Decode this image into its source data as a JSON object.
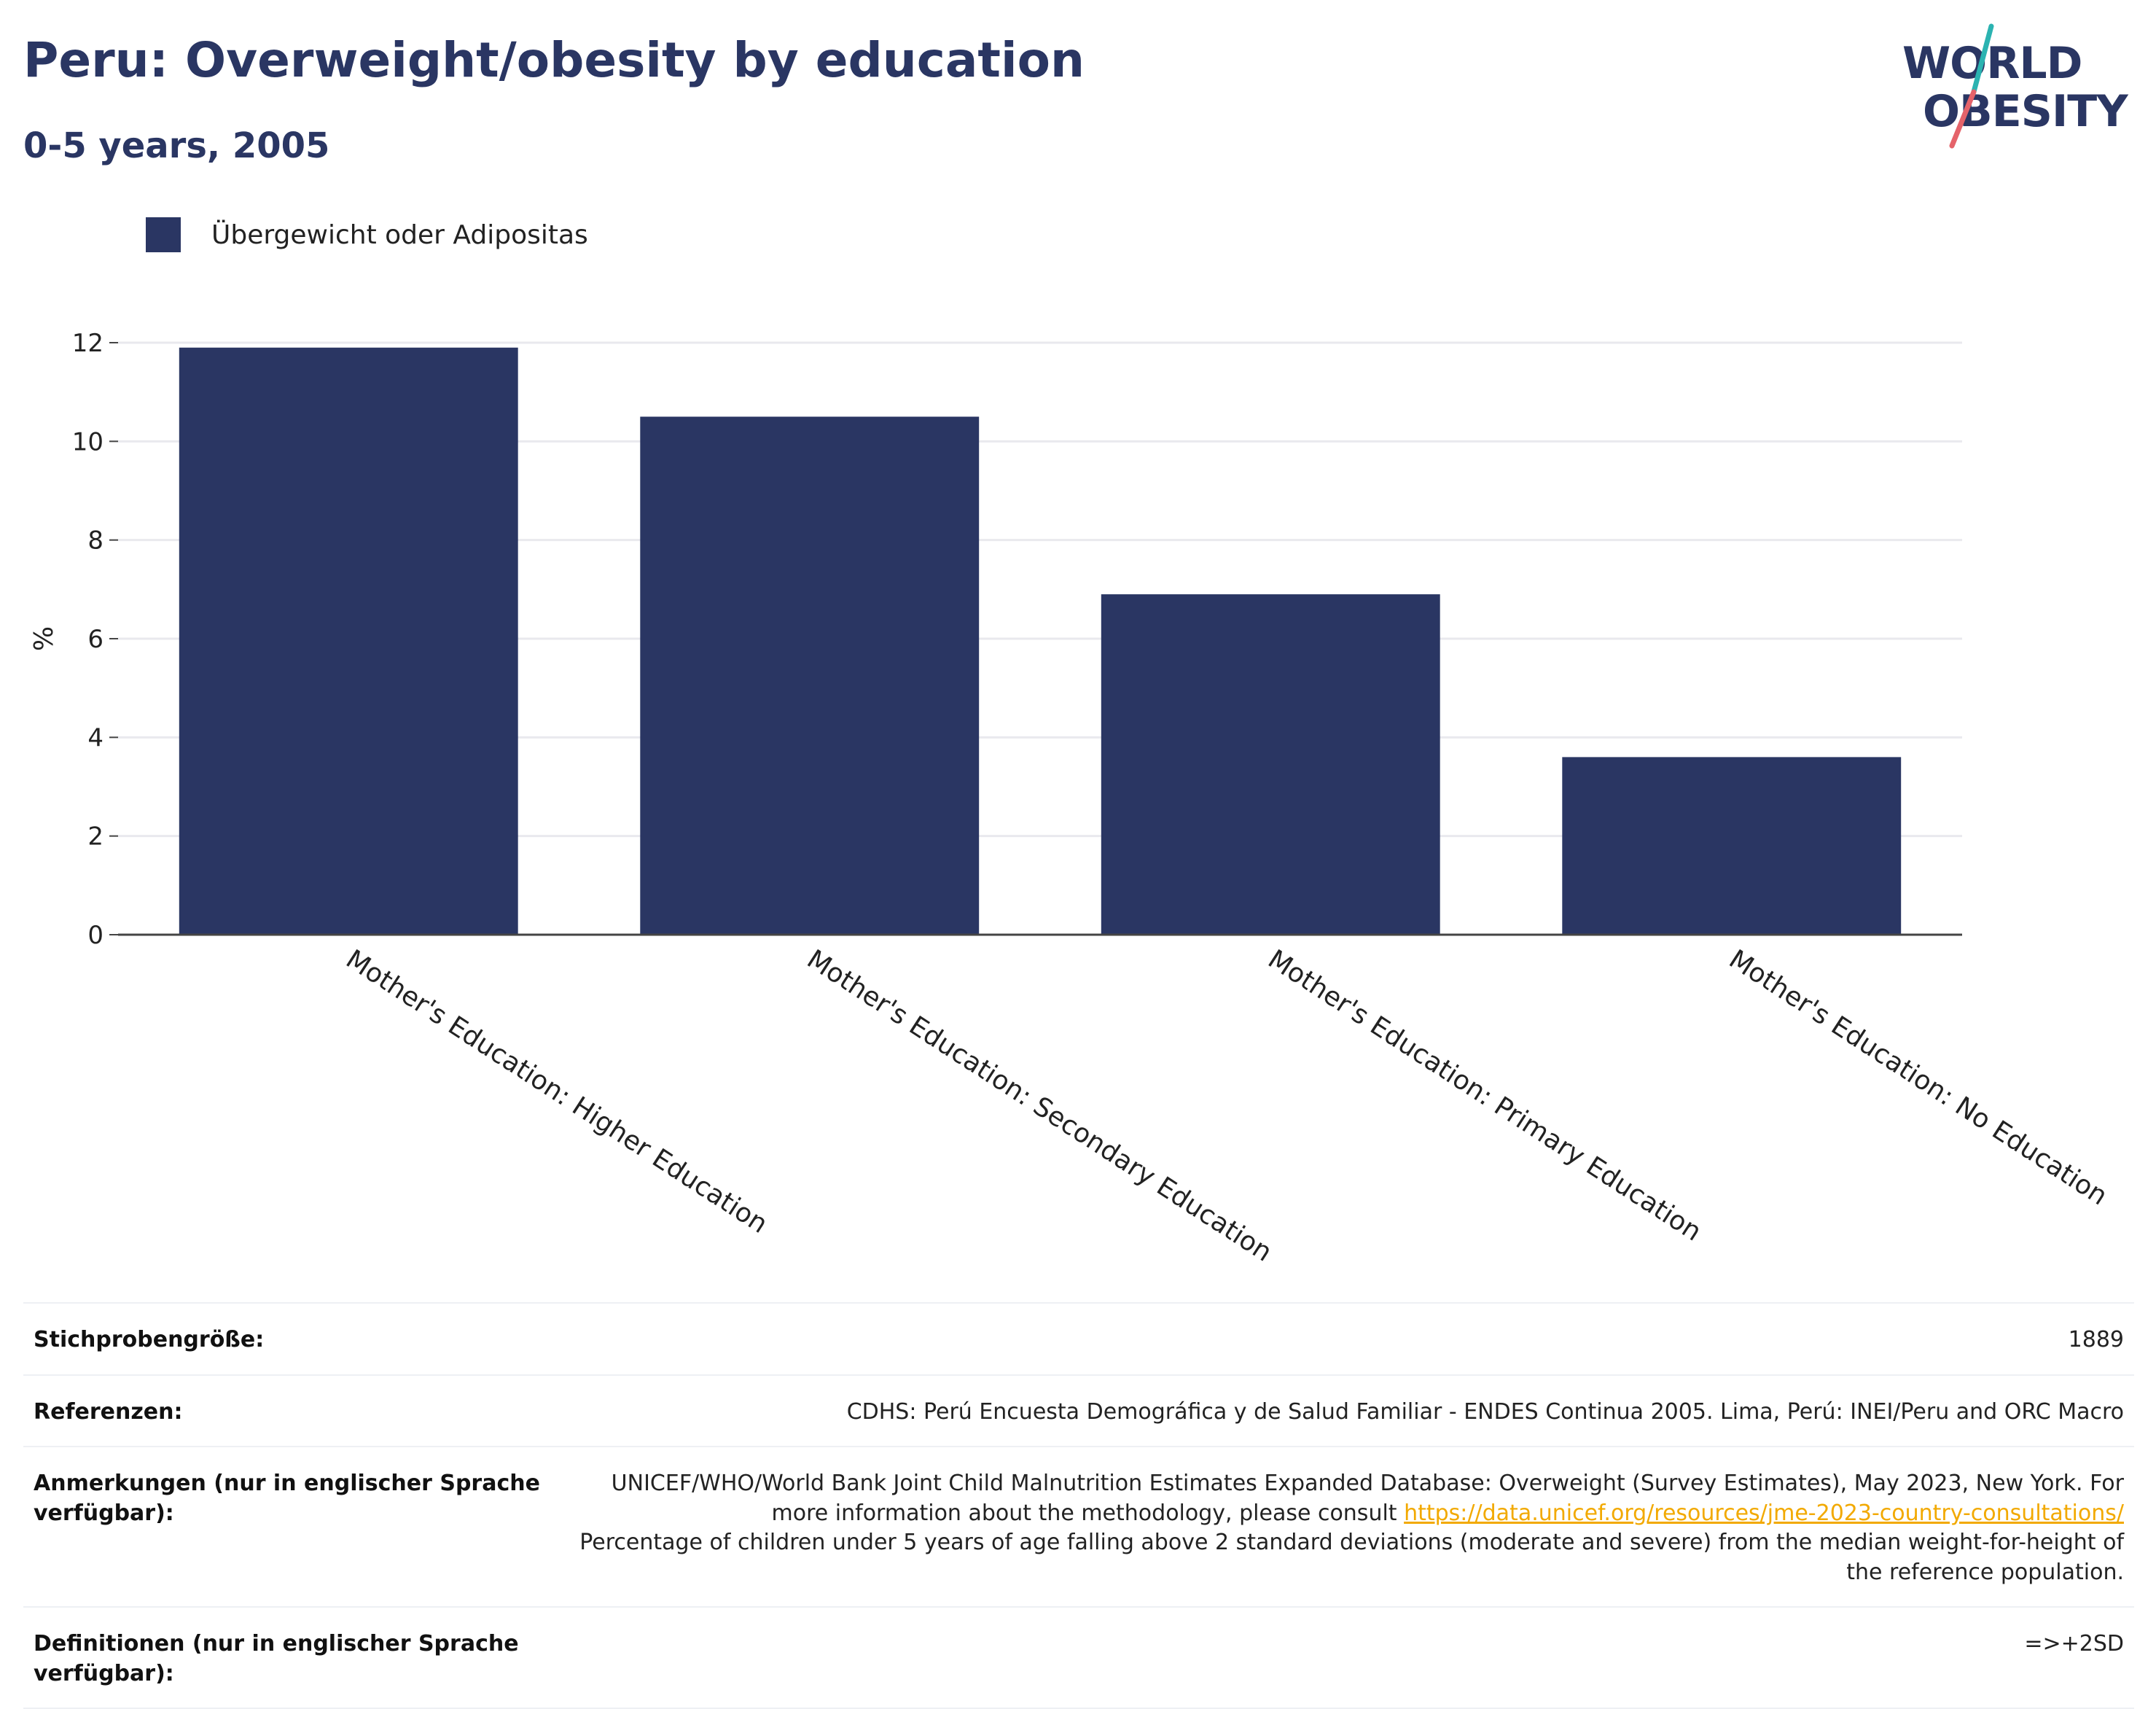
{
  "header": {
    "title": "Peru: Overweight/obesity by education",
    "subtitle": "0-5 years, 2005"
  },
  "logo": {
    "line1": "WORLD",
    "line2": "OBESITY",
    "slash_colors": [
      "#2bb3b1",
      "#e5636a"
    ]
  },
  "legend": {
    "label": "Übergewicht oder Adipositas",
    "color": "#2a3663"
  },
  "chart_data": {
    "type": "bar",
    "categories": [
      "Mother's Education: Higher Education",
      "Mother's Education: Secondary Education",
      "Mother's Education: Primary Education",
      "Mother's Education: No Education"
    ],
    "series": [
      {
        "name": "Übergewicht oder Adipositas",
        "values": [
          11.9,
          10.5,
          6.9,
          3.6
        ]
      }
    ],
    "ylabel": "%",
    "xlabel": "",
    "ylim": [
      0,
      12
    ],
    "yticks": [
      0,
      2,
      4,
      6,
      8,
      10,
      12
    ],
    "grid": true,
    "legend_position": "top-left",
    "bar_color": "#2a3663"
  },
  "meta": {
    "sample_size_label": "Stichprobengröße:",
    "sample_size_value": "1889",
    "references_label": "Referenzen:",
    "references_value": "CDHS: Perú Encuesta Demográfica y de Salud Familiar - ENDES Continua 2005. Lima, Perú: INEI/Peru and ORC Macro",
    "notes_label": "Anmerkungen (nur in englischer Sprache verfügbar):",
    "notes_text_1": "UNICEF/WHO/World Bank Joint Child Malnutrition Estimates Expanded Database: Overweight (Survey Estimates), May 2023, New York. For more information about the methodology, please consult ",
    "notes_link": "https://data.unicef.org/resources/jme-2023-country-consultations/",
    "notes_text_2": "Percentage of children under 5 years of age falling above 2 standard deviations (moderate and severe) from the median weight-for-height of the reference population.",
    "definitions_label": "Definitionen (nur in englischer Sprache verfügbar):",
    "definitions_value": "=>+2SD"
  }
}
